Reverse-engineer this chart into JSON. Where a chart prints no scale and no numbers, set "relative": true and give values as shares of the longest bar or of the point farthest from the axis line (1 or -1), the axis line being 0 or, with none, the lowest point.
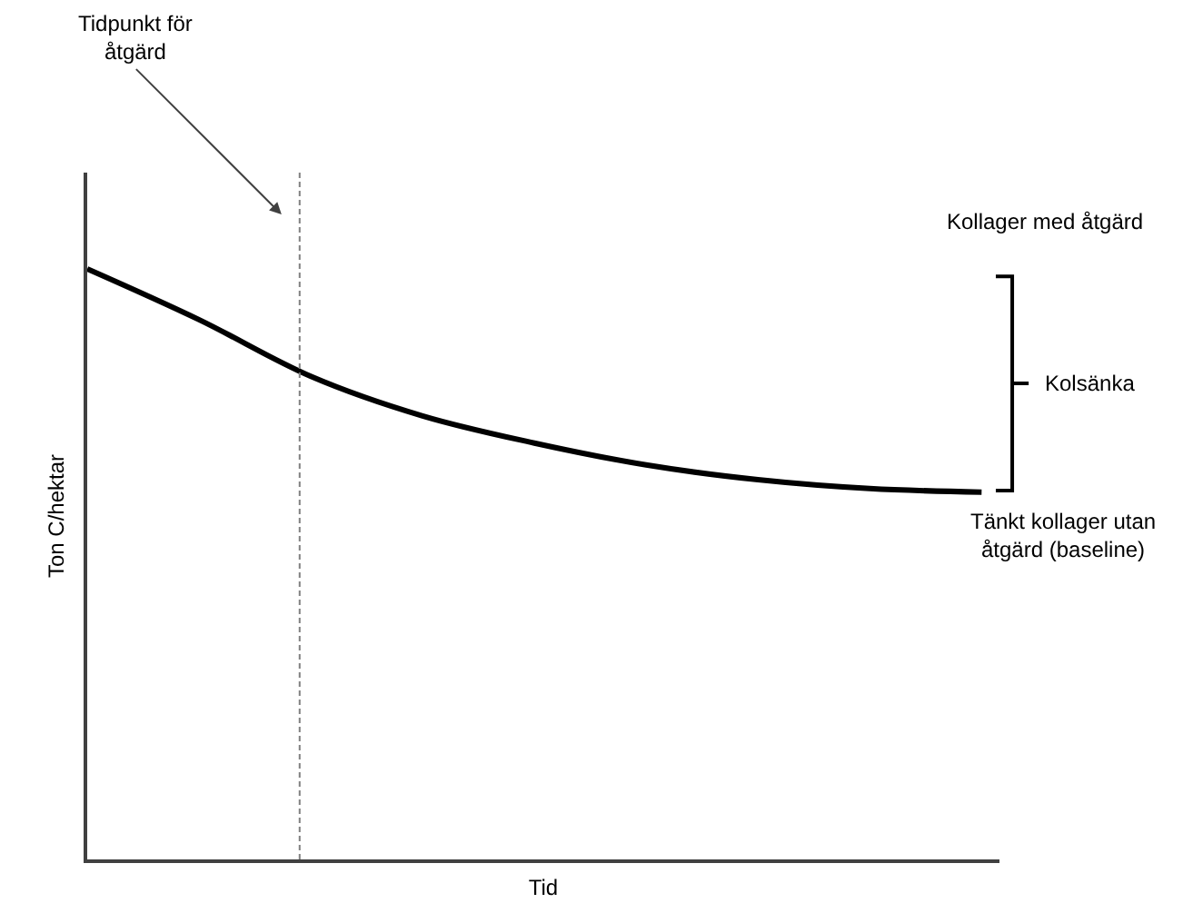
{
  "chart_data": {
    "type": "line",
    "relative": true,
    "xlabel": "Tid",
    "ylabel": "Ton C/hektar",
    "categories": [
      null,
      null,
      null,
      null,
      null,
      null,
      null,
      null,
      null
    ],
    "series": [
      {
        "color": "#000000",
        "values": [
          1,
          0.914,
          0.818,
          0.751,
          0.705,
          0.668,
          0.643,
          0.628,
          0.622
        ]
      }
    ],
    "annotations": [
      "Tidpunkt för\nåtgärd",
      "Kollager med åtgärd",
      "Kolsänka",
      "Tänkt kollager utan\nåtgärd (baseline)"
    ],
    "tick_labels": false,
    "marker": "none",
    "line_style": "solid"
  }
}
